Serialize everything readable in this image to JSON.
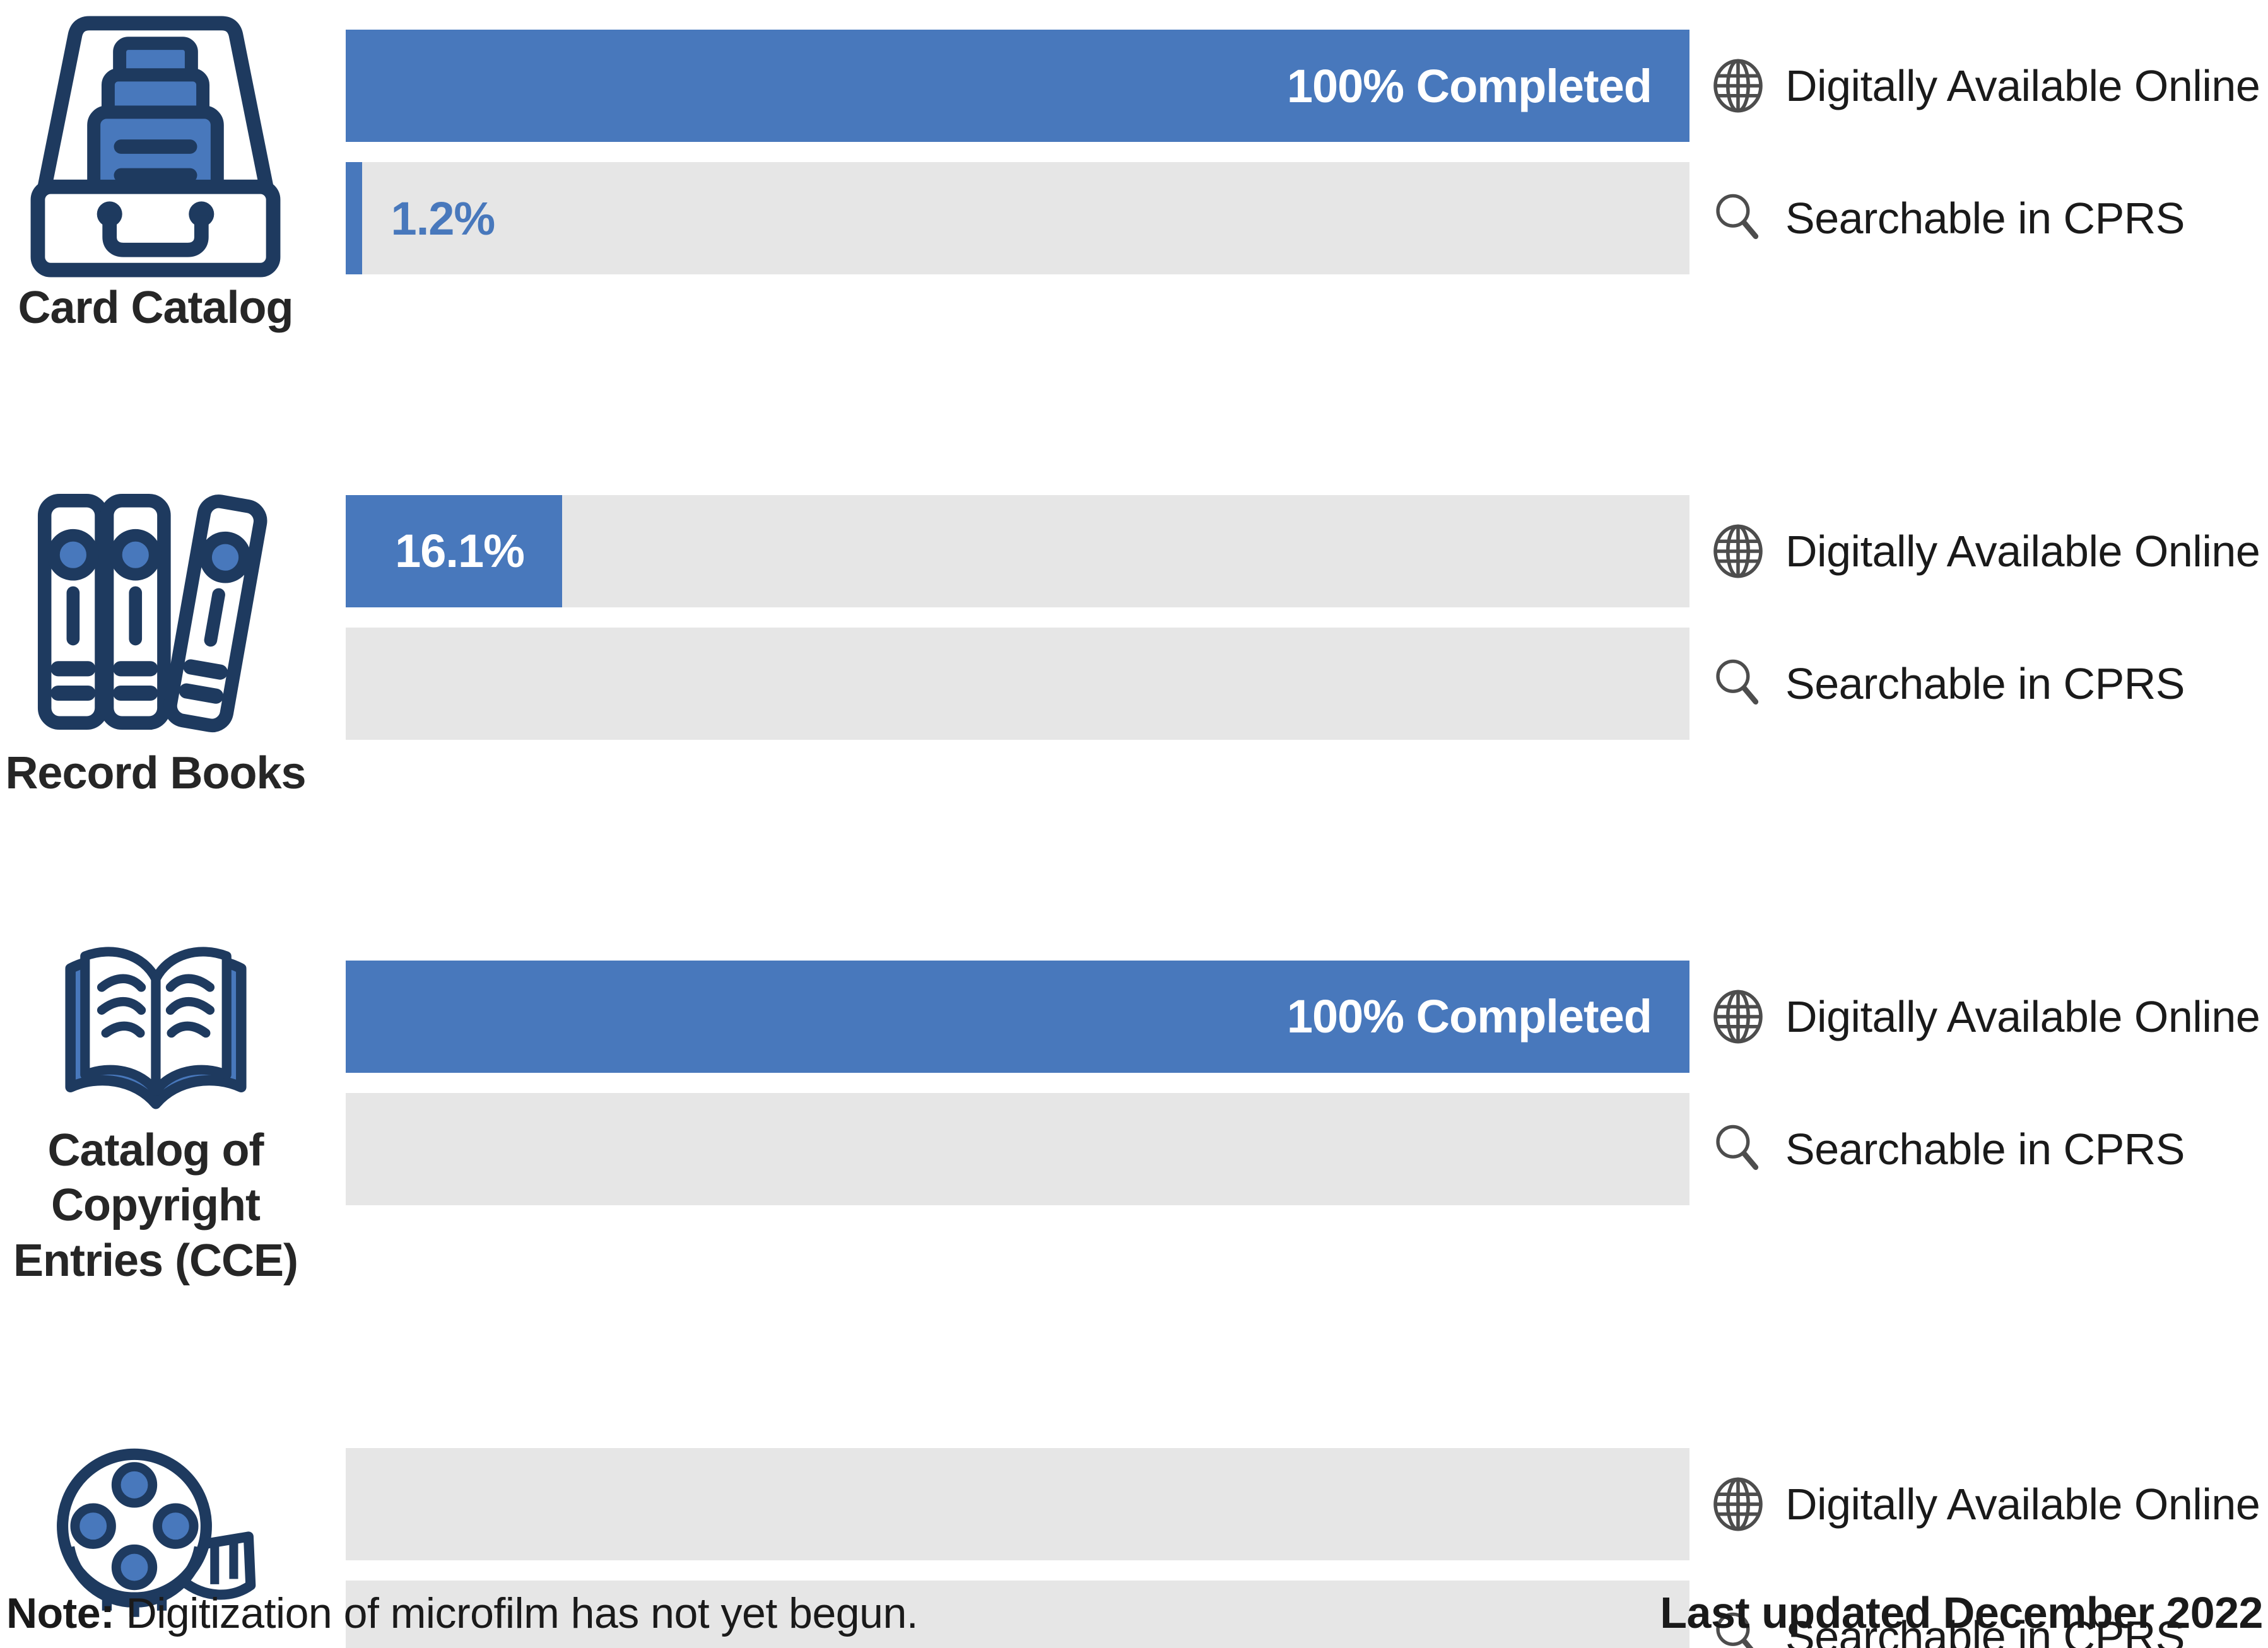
{
  "colors": {
    "bar_fill_blue": "#4878BC",
    "bar_track_gray": "#E6E6E6",
    "icon_outline_navy": "#1E3A5F",
    "icon_fill_blue": "#4878BC",
    "legend_icon_gray": "#4D4D4D",
    "text_dark": "#262626"
  },
  "legend": {
    "online": "Digitally Available Online",
    "cprs": "Searchable in CPRS"
  },
  "rows": [
    {
      "category": "Card Catalog",
      "icon": "card-catalog",
      "online": {
        "value": 100,
        "label": "100% Completed",
        "label_pos": "inside"
      },
      "cprs": {
        "value": 1.2,
        "label": "1.2%",
        "label_pos": "outside"
      }
    },
    {
      "category": "Record Books",
      "icon": "record-books",
      "online": {
        "value": 16.1,
        "label": "16.1%",
        "label_pos": "inside"
      },
      "cprs": {
        "value": 0,
        "label": "",
        "label_pos": "none"
      }
    },
    {
      "category": "Catalog of\nCopyright\nEntries (CCE)",
      "icon": "open-book",
      "online": {
        "value": 100,
        "label": "100% Completed",
        "label_pos": "inside"
      },
      "cprs": {
        "value": 0,
        "label": "",
        "label_pos": "none"
      }
    },
    {
      "category": "Microfilm",
      "icon": "film-reel",
      "online": {
        "value": 0,
        "label": "",
        "label_pos": "none"
      },
      "cprs": {
        "value": 0,
        "label": "",
        "label_pos": "none"
      }
    }
  ],
  "footer": {
    "note_bold": "Note:",
    "note_rest": " Digitization of microfilm has not yet begun.",
    "updated": "Last updated December 2022"
  },
  "chart_data": {
    "type": "bar",
    "orientation": "horizontal",
    "categories": [
      "Card Catalog",
      "Record Books",
      "Catalog of Copyright Entries (CCE)",
      "Microfilm"
    ],
    "series": [
      {
        "name": "Digitally Available Online",
        "values": [
          100,
          16.1,
          100,
          0
        ]
      },
      {
        "name": "Searchable in CPRS",
        "values": [
          1.2,
          0,
          0,
          0
        ]
      }
    ],
    "unit": "percent",
    "xlim": [
      0,
      100
    ],
    "bar_labels": [
      [
        "100% Completed",
        "1.2%"
      ],
      [
        "16.1%",
        ""
      ],
      [
        "100% Completed",
        ""
      ],
      [
        "",
        ""
      ]
    ],
    "legend_position": "right-of-each-bar",
    "grid": false,
    "note": "Note: Digitization of microfilm has not yet begun.",
    "last_updated": "Last updated December 2022"
  }
}
